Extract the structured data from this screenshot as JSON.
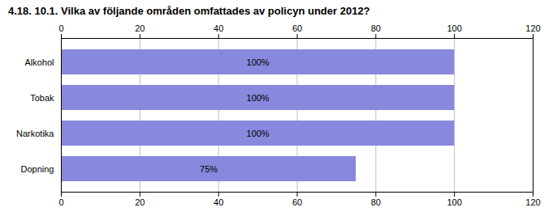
{
  "chart_data": {
    "type": "bar",
    "title": "4.18. 10.1. Vilka av följande områden omfattades av policyn under 2012?",
    "orientation": "horizontal",
    "categories": [
      "Dopning",
      "Narkotika",
      "Tobak",
      "Alkohol"
    ],
    "values": [
      75,
      100,
      100,
      100
    ],
    "value_labels": [
      "75%",
      "100%",
      "100%",
      "100%"
    ],
    "data_labels": true,
    "color": "#8888dd",
    "xlim": [
      0,
      120
    ],
    "xticks": [
      0,
      20,
      40,
      60,
      80,
      100,
      120
    ],
    "grid": true
  }
}
